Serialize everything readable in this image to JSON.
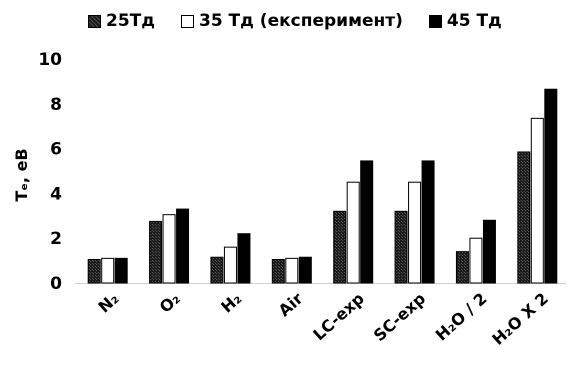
{
  "chart_data": {
    "type": "bar",
    "title": "",
    "xlabel": "",
    "ylabel": "Tₑ, eB",
    "ylim": [
      0,
      10
    ],
    "yticks": [
      "0",
      "2",
      "4",
      "6",
      "8",
      "10"
    ],
    "grid": false,
    "legend_position": "top",
    "categories": [
      "N₂",
      "O₂",
      "H₂",
      "Air",
      "LC-exp",
      "SC-exp",
      "H₂O / 2",
      "H₂O X 2"
    ],
    "series": [
      {
        "name": "25Тд",
        "color": "#2b2b2b",
        "values": [
          1.05,
          2.75,
          1.15,
          1.05,
          3.2,
          3.2,
          1.4,
          5.85
        ]
      },
      {
        "name": "35 Тд (експеримент)",
        "color": "#ffffff",
        "values": [
          1.1,
          3.05,
          1.6,
          1.1,
          4.5,
          4.5,
          2.0,
          7.35
        ]
      },
      {
        "name": "45 Тд",
        "color": "#000000",
        "values": [
          1.1,
          3.3,
          2.2,
          1.15,
          5.45,
          5.45,
          2.8,
          8.65
        ]
      }
    ]
  }
}
